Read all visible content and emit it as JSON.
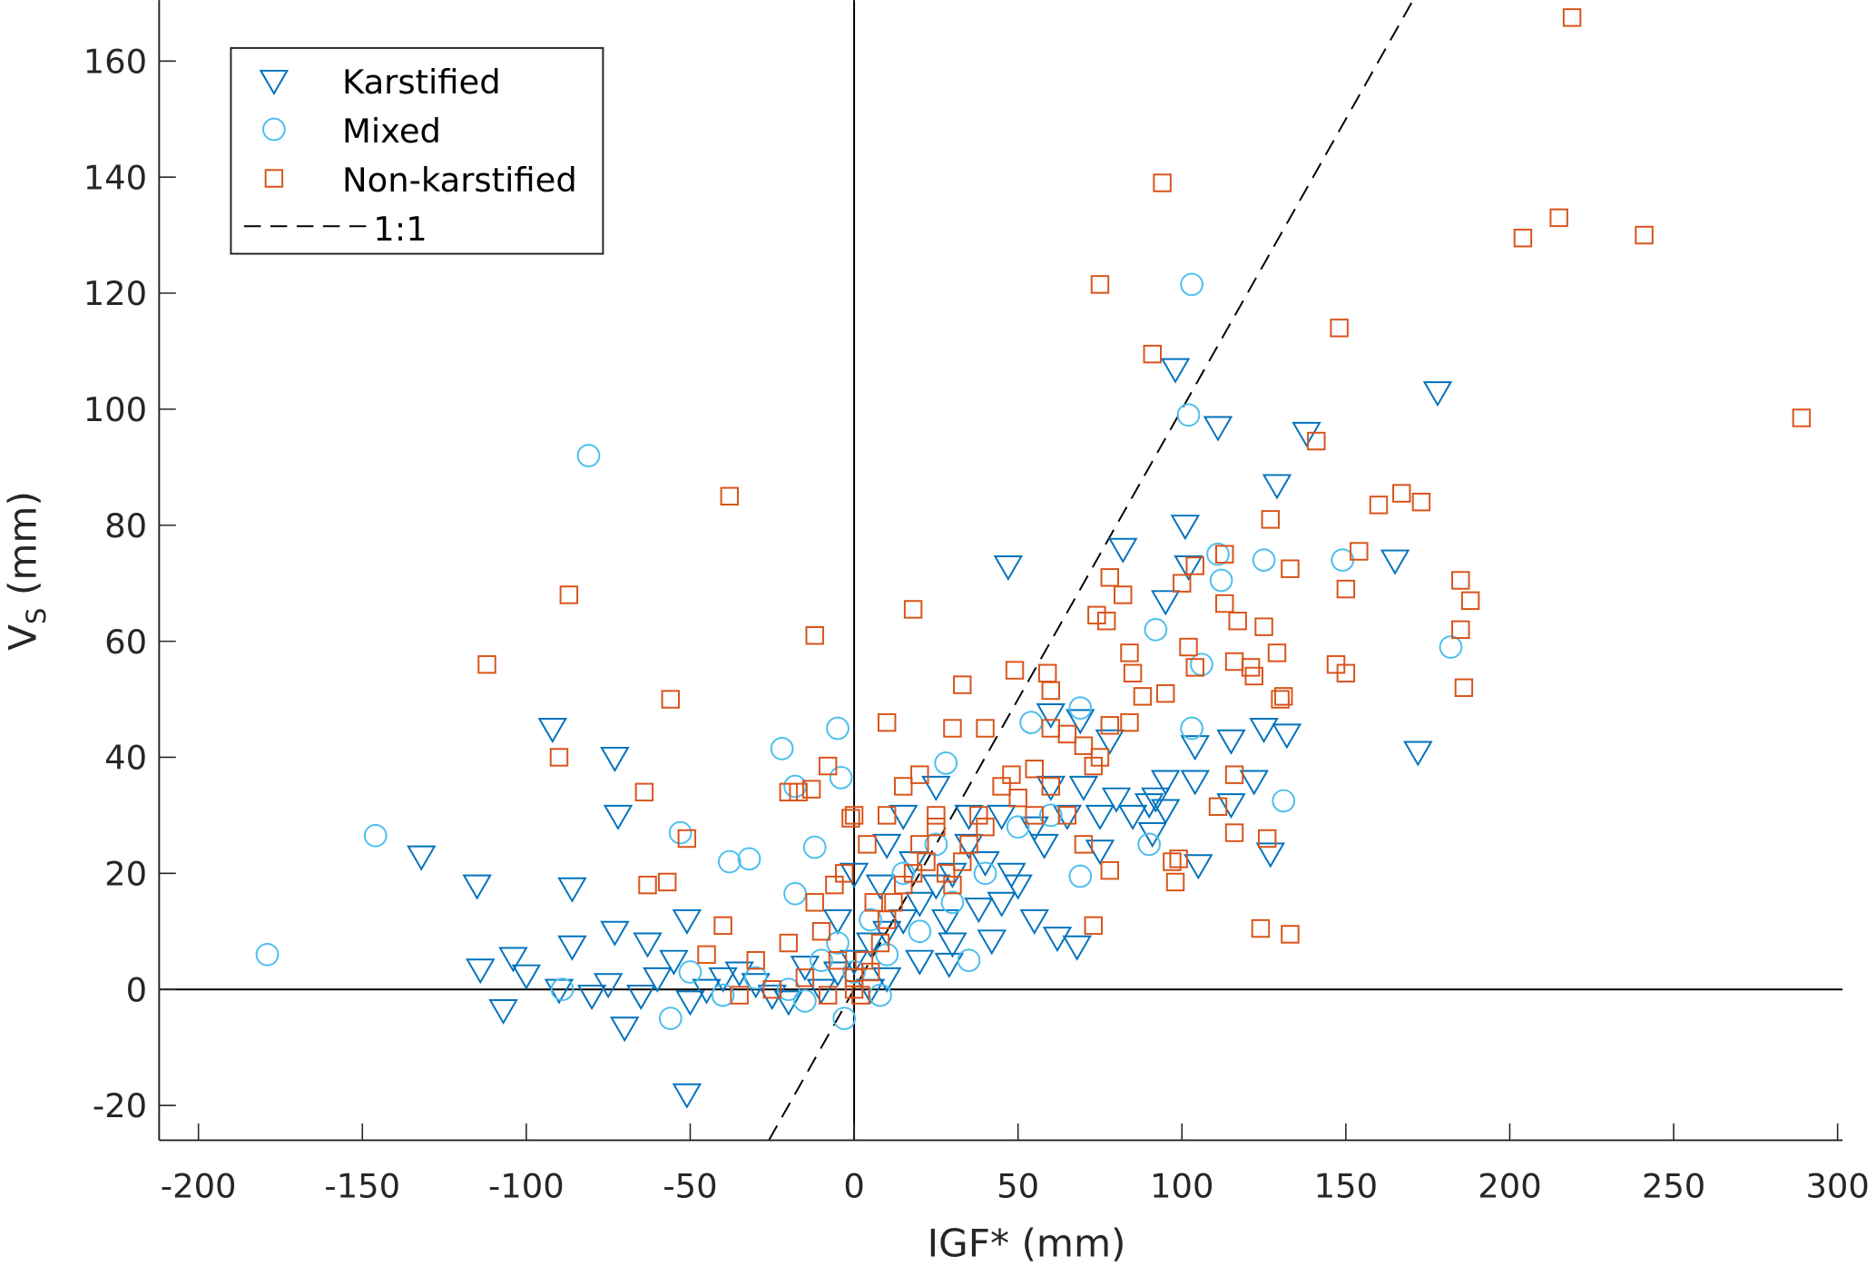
{
  "chart_data": {
    "type": "scatter",
    "xlabel": "IGF* (mm)",
    "ylabel": "V",
    "ylabel_sub": "S",
    "ylabel_unit": " (mm)",
    "xlim": [
      -212,
      301.5
    ],
    "ylim": [
      -26,
      170.5
    ],
    "xticks": [
      -200,
      -150,
      -100,
      -50,
      0,
      50,
      100,
      150,
      200,
      250,
      300
    ],
    "yticks": [
      -20,
      0,
      20,
      40,
      60,
      80,
      100,
      120,
      140,
      160
    ],
    "grid": false,
    "legend_position": "top-left",
    "reference_line": {
      "name": "1:1",
      "slope": 1,
      "intercept": 0,
      "color": "#000000"
    },
    "series": [
      {
        "name": "Karstified",
        "marker": "triangle-down",
        "color": "#0072BD",
        "points": [
          [
            -92,
            45
          ],
          [
            -73,
            40
          ],
          [
            -72,
            30
          ],
          [
            -132,
            23
          ],
          [
            -115,
            18
          ],
          [
            -86,
            17.5
          ],
          [
            -114,
            3.5
          ],
          [
            -104,
            5.5
          ],
          [
            -107,
            -3.5
          ],
          [
            -100,
            2.5
          ],
          [
            -86,
            7.5
          ],
          [
            -73,
            10
          ],
          [
            -63,
            8
          ],
          [
            -70,
            -6.5
          ],
          [
            -51,
            -18
          ],
          [
            -51,
            12
          ],
          [
            47,
            73
          ],
          [
            82,
            76
          ],
          [
            98,
            107
          ],
          [
            101,
            80
          ],
          [
            111,
            97
          ],
          [
            138,
            96
          ],
          [
            129,
            87
          ],
          [
            178,
            103
          ],
          [
            165,
            74
          ],
          [
            172,
            41
          ],
          [
            102,
            73
          ],
          [
            95,
            67
          ],
          [
            69,
            46.5
          ],
          [
            60,
            47.5
          ],
          [
            78,
            43
          ],
          [
            104,
            42
          ],
          [
            115,
            43
          ],
          [
            132,
            44
          ],
          [
            125,
            45
          ],
          [
            122,
            36
          ],
          [
            115,
            32
          ],
          [
            105,
            21.5
          ],
          [
            127,
            23.5
          ],
          [
            91,
            27
          ],
          [
            75,
            24
          ],
          [
            68,
            7.5
          ],
          [
            62,
            9
          ],
          [
            42,
            8.5
          ],
          [
            29,
            4.5
          ],
          [
            92,
            33
          ],
          [
            95,
            36
          ],
          [
            104,
            36
          ],
          [
            -40,
            2
          ],
          [
            -30,
            1
          ],
          [
            -20,
            -2
          ],
          [
            -10,
            0
          ],
          [
            -5,
            3
          ],
          [
            0,
            5
          ],
          [
            5,
            8
          ],
          [
            10,
            10
          ],
          [
            15,
            12
          ],
          [
            20,
            15
          ],
          [
            25,
            18
          ],
          [
            30,
            20
          ],
          [
            35,
            25
          ],
          [
            40,
            22
          ],
          [
            45,
            15
          ],
          [
            50,
            18
          ],
          [
            55,
            12
          ],
          [
            20,
            5
          ],
          [
            30,
            8
          ],
          [
            10,
            2
          ],
          [
            5,
            0
          ],
          [
            -15,
            4
          ],
          [
            -25,
            -1
          ],
          [
            -35,
            3
          ],
          [
            -45,
            0
          ],
          [
            -55,
            5
          ],
          [
            -60,
            2
          ],
          [
            15,
            30
          ],
          [
            25,
            35
          ],
          [
            35,
            30
          ],
          [
            45,
            30
          ],
          [
            55,
            28
          ],
          [
            60,
            35
          ],
          [
            65,
            30
          ],
          [
            70,
            35
          ],
          [
            75,
            30
          ],
          [
            80,
            33
          ],
          [
            85,
            30
          ],
          [
            90,
            32
          ],
          [
            95,
            31
          ],
          [
            10,
            25
          ],
          [
            0,
            20
          ],
          [
            -5,
            12
          ],
          [
            8,
            18
          ],
          [
            18,
            22
          ],
          [
            28,
            12
          ],
          [
            38,
            14
          ],
          [
            48,
            20
          ],
          [
            58,
            25
          ],
          [
            -75,
            1
          ],
          [
            -80,
            -1
          ],
          [
            -90,
            0
          ],
          [
            -65,
            -1
          ],
          [
            -50,
            -2
          ]
        ]
      },
      {
        "name": "Mixed",
        "marker": "circle",
        "color": "#4DBEEE",
        "points": [
          [
            -179,
            6
          ],
          [
            -146,
            26.5
          ],
          [
            -81,
            92
          ],
          [
            -53,
            27
          ],
          [
            -38,
            22
          ],
          [
            -32,
            22.5
          ],
          [
            -22,
            41.5
          ],
          [
            -18,
            35
          ],
          [
            -18,
            16.5
          ],
          [
            -5,
            45
          ],
          [
            -4,
            36.5
          ],
          [
            -89,
            0
          ],
          [
            -56,
            -5
          ],
          [
            103,
            121.5
          ],
          [
            102,
            99
          ],
          [
            111,
            75
          ],
          [
            112,
            70.5
          ],
          [
            125,
            74
          ],
          [
            149,
            74
          ],
          [
            92,
            62
          ],
          [
            106,
            56
          ],
          [
            103,
            45
          ],
          [
            182,
            59
          ],
          [
            131,
            32.5
          ],
          [
            90,
            25
          ],
          [
            69,
            19.5
          ],
          [
            54,
            46
          ],
          [
            69,
            48.5
          ],
          [
            28,
            39
          ],
          [
            -12,
            24.5
          ],
          [
            -3,
            -5
          ],
          [
            -30,
            2
          ],
          [
            -20,
            0
          ],
          [
            -10,
            5
          ],
          [
            0,
            3
          ],
          [
            10,
            6
          ],
          [
            20,
            10
          ],
          [
            30,
            15
          ],
          [
            40,
            20
          ],
          [
            -40,
            -1
          ],
          [
            5,
            12
          ],
          [
            15,
            20
          ],
          [
            25,
            25
          ],
          [
            -5,
            8
          ],
          [
            35,
            5
          ],
          [
            -15,
            -2
          ],
          [
            8,
            -1
          ],
          [
            -50,
            3
          ],
          [
            50,
            28
          ],
          [
            60,
            30
          ]
        ]
      },
      {
        "name": "Non-karstified",
        "marker": "square",
        "color": "#D95319",
        "points": [
          [
            -112,
            56
          ],
          [
            -87,
            68
          ],
          [
            -90,
            40
          ],
          [
            -38,
            85
          ],
          [
            -56,
            50
          ],
          [
            -64,
            34
          ],
          [
            -63,
            18
          ],
          [
            -57,
            18.5
          ],
          [
            -51,
            26
          ],
          [
            -12,
            61
          ],
          [
            -40,
            11
          ],
          [
            10,
            46
          ],
          [
            18,
            65.5
          ],
          [
            75,
            121.5
          ],
          [
            94,
            139
          ],
          [
            91,
            109.5
          ],
          [
            148,
            114
          ],
          [
            141,
            94.5
          ],
          [
            204,
            129.5
          ],
          [
            215,
            133
          ],
          [
            219,
            167.5
          ],
          [
            241,
            130
          ],
          [
            289,
            98.5
          ],
          [
            127,
            81
          ],
          [
            154,
            75.5
          ],
          [
            160,
            83.5
          ],
          [
            167,
            85.5
          ],
          [
            173,
            84
          ],
          [
            133,
            72.5
          ],
          [
            150,
            69
          ],
          [
            185,
            70.5
          ],
          [
            188,
            67
          ],
          [
            185,
            62
          ],
          [
            186,
            52
          ],
          [
            147,
            56
          ],
          [
            150,
            54.5
          ],
          [
            130,
            50
          ],
          [
            121,
            55.5
          ],
          [
            125,
            62.5
          ],
          [
            129,
            58
          ],
          [
            113,
            75
          ],
          [
            113,
            66.5
          ],
          [
            117,
            63.5
          ],
          [
            104,
            73
          ],
          [
            100,
            70
          ],
          [
            102,
            59
          ],
          [
            84,
            58
          ],
          [
            82,
            68
          ],
          [
            78,
            71
          ],
          [
            77,
            63.5
          ],
          [
            74,
            64.5
          ],
          [
            85,
            54.5
          ],
          [
            88,
            50.5
          ],
          [
            95,
            51
          ],
          [
            84,
            46
          ],
          [
            104,
            55.5
          ],
          [
            116,
            56.5
          ],
          [
            116,
            37
          ],
          [
            116,
            27
          ],
          [
            111,
            31.5
          ],
          [
            122,
            54
          ],
          [
            131,
            50.5
          ],
          [
            126,
            26
          ],
          [
            124,
            10.5
          ],
          [
            133,
            9.5
          ],
          [
            73,
            11
          ],
          [
            78,
            20.5
          ],
          [
            97,
            22
          ],
          [
            98,
            18.5
          ],
          [
            99,
            22.5
          ],
          [
            33,
            52.5
          ],
          [
            49,
            55
          ],
          [
            59,
            54.5
          ],
          [
            60,
            51.5
          ],
          [
            65,
            44
          ],
          [
            73,
            38.5
          ],
          [
            78,
            45.5
          ],
          [
            -1,
            29.5
          ],
          [
            -8,
            38.5
          ],
          [
            -13,
            34.5
          ],
          [
            -17,
            34
          ],
          [
            -20,
            34
          ],
          [
            -30,
            5
          ],
          [
            -20,
            8
          ],
          [
            -10,
            10
          ],
          [
            -5,
            5
          ],
          [
            0,
            2
          ],
          [
            0,
            0
          ],
          [
            2,
            -1
          ],
          [
            5,
            3
          ],
          [
            8,
            8
          ],
          [
            10,
            12
          ],
          [
            12,
            15
          ],
          [
            15,
            18
          ],
          [
            18,
            20
          ],
          [
            20,
            25
          ],
          [
            22,
            22
          ],
          [
            25,
            28
          ],
          [
            28,
            20
          ],
          [
            30,
            18
          ],
          [
            33,
            22
          ],
          [
            35,
            25
          ],
          [
            38,
            30
          ],
          [
            40,
            28
          ],
          [
            45,
            35
          ],
          [
            50,
            33
          ],
          [
            55,
            30
          ],
          [
            60,
            35
          ],
          [
            65,
            30
          ],
          [
            70,
            25
          ],
          [
            -25,
            0
          ],
          [
            -15,
            2
          ],
          [
            -8,
            -1
          ],
          [
            3,
            5
          ],
          [
            6,
            15
          ],
          [
            -35,
            -1
          ],
          [
            -45,
            6
          ],
          [
            -3,
            20
          ],
          [
            4,
            25
          ],
          [
            10,
            30
          ],
          [
            15,
            35
          ],
          [
            20,
            37
          ],
          [
            25,
            30
          ],
          [
            30,
            45
          ],
          [
            40,
            45
          ],
          [
            48,
            37
          ],
          [
            55,
            38
          ],
          [
            60,
            45
          ],
          [
            70,
            42
          ],
          [
            75,
            40
          ],
          [
            -12,
            15
          ],
          [
            -6,
            18
          ],
          [
            0,
            30
          ]
        ]
      }
    ]
  }
}
